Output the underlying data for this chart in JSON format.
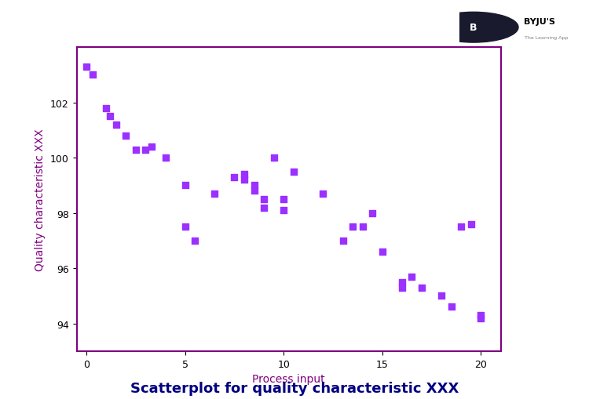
{
  "x": [
    0,
    0.3,
    1,
    1.2,
    1.5,
    2,
    2.5,
    3,
    3.3,
    4,
    5,
    5,
    5.5,
    6.5,
    7.5,
    8,
    8,
    8.5,
    8.5,
    9,
    9,
    9.5,
    10,
    10,
    10.5,
    12,
    13,
    13.5,
    14,
    14.5,
    15,
    16,
    16,
    16.5,
    17,
    18,
    18.5,
    19,
    19.5,
    20,
    20
  ],
  "y": [
    103.3,
    103.0,
    101.8,
    101.5,
    101.2,
    100.8,
    100.3,
    100.3,
    100.4,
    100.0,
    99.0,
    97.5,
    97.0,
    98.7,
    99.3,
    99.4,
    99.2,
    99.0,
    98.8,
    98.2,
    98.5,
    100.0,
    98.1,
    98.5,
    99.5,
    98.7,
    97.0,
    97.5,
    97.5,
    98.0,
    96.6,
    95.3,
    95.5,
    95.7,
    95.3,
    95.0,
    94.6,
    97.5,
    97.6,
    94.2,
    94.3
  ],
  "color": "#9B30FF",
  "marker": "s",
  "marker_size": 40,
  "xlabel": "Process input",
  "ylabel": "Quality characteristic XXX",
  "title": "Scatterplot for quality characteristic XXX",
  "xlim": [
    -0.5,
    21
  ],
  "ylim": [
    93,
    104
  ],
  "xticks": [
    0,
    5,
    10,
    15,
    20
  ],
  "yticks": [
    94,
    96,
    98,
    100,
    102
  ],
  "spine_color": "#800080",
  "title_fontsize": 13,
  "label_fontsize": 10,
  "tick_fontsize": 9,
  "title_color": "navy",
  "label_color": "#800080",
  "tick_color": "black",
  "byju_text": "BYJU'S",
  "byju_subtext": "The Learning App"
}
